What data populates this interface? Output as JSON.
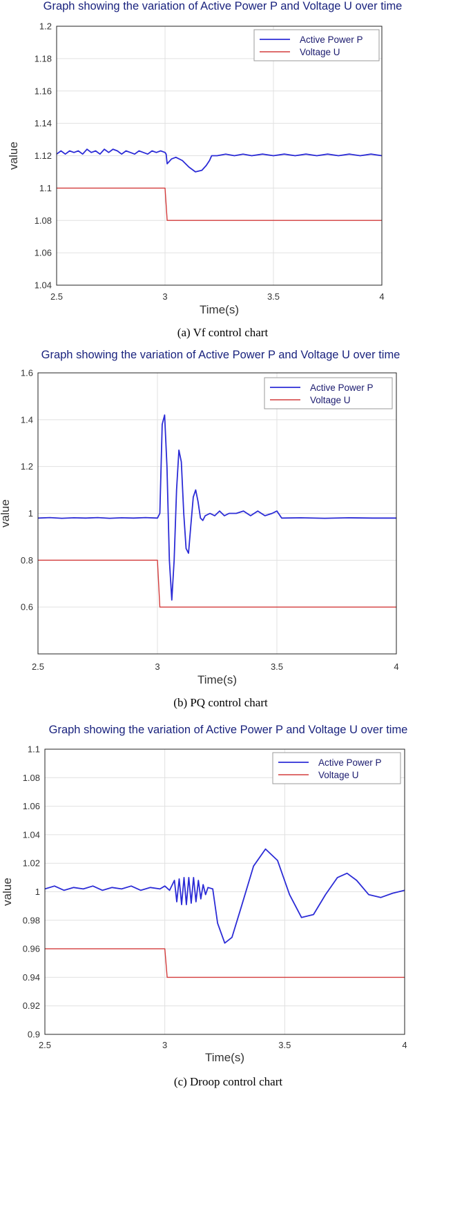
{
  "chart_data": [
    {
      "type": "line",
      "title": "Graph showing the variation of Active Power P and Voltage U over time",
      "caption": "(a) Vf control chart",
      "xlabel": "Time(s)",
      "ylabel": "value",
      "xlim": [
        2.5,
        4
      ],
      "ylim": [
        1.04,
        1.2
      ],
      "xticks": [
        2.5,
        3,
        3.5,
        4
      ],
      "xtick_labels": [
        "2.5",
        "3",
        "3.5",
        "4"
      ],
      "yticks": [
        1.04,
        1.06,
        1.08,
        1.1,
        1.12,
        1.14,
        1.16,
        1.18,
        1.2
      ],
      "ytick_labels": [
        "1.04",
        "1.06",
        "1.08",
        "1.1",
        "1.12",
        "1.14",
        "1.16",
        "1.18",
        "1.2"
      ],
      "grid": true,
      "legend_position": "top-right",
      "series": [
        {
          "name": "Active Power P",
          "color": "#2b2bd6",
          "points": [
            [
              2.5,
              1.121
            ],
            [
              2.52,
              1.123
            ],
            [
              2.54,
              1.121
            ],
            [
              2.56,
              1.123
            ],
            [
              2.58,
              1.122
            ],
            [
              2.6,
              1.123
            ],
            [
              2.62,
              1.121
            ],
            [
              2.64,
              1.124
            ],
            [
              2.66,
              1.122
            ],
            [
              2.68,
              1.123
            ],
            [
              2.7,
              1.121
            ],
            [
              2.72,
              1.124
            ],
            [
              2.74,
              1.122
            ],
            [
              2.76,
              1.124
            ],
            [
              2.78,
              1.123
            ],
            [
              2.8,
              1.121
            ],
            [
              2.82,
              1.123
            ],
            [
              2.84,
              1.122
            ],
            [
              2.86,
              1.121
            ],
            [
              2.88,
              1.123
            ],
            [
              2.9,
              1.122
            ],
            [
              2.92,
              1.121
            ],
            [
              2.94,
              1.123
            ],
            [
              2.96,
              1.122
            ],
            [
              2.98,
              1.123
            ],
            [
              3.0,
              1.122
            ],
            [
              3.005,
              1.121
            ],
            [
              3.01,
              1.115
            ],
            [
              3.03,
              1.118
            ],
            [
              3.05,
              1.119
            ],
            [
              3.08,
              1.117
            ],
            [
              3.11,
              1.113
            ],
            [
              3.14,
              1.11
            ],
            [
              3.17,
              1.111
            ],
            [
              3.19,
              1.114
            ],
            [
              3.205,
              1.117
            ],
            [
              3.215,
              1.12
            ],
            [
              3.24,
              1.12
            ],
            [
              3.28,
              1.121
            ],
            [
              3.32,
              1.12
            ],
            [
              3.36,
              1.121
            ],
            [
              3.4,
              1.12
            ],
            [
              3.45,
              1.121
            ],
            [
              3.5,
              1.12
            ],
            [
              3.55,
              1.121
            ],
            [
              3.6,
              1.12
            ],
            [
              3.65,
              1.121
            ],
            [
              3.7,
              1.12
            ],
            [
              3.75,
              1.121
            ],
            [
              3.8,
              1.12
            ],
            [
              3.85,
              1.121
            ],
            [
              3.9,
              1.12
            ],
            [
              3.95,
              1.121
            ],
            [
              4.0,
              1.12
            ]
          ]
        },
        {
          "name": "Voltage U",
          "color": "#d33b3b",
          "points": [
            [
              2.5,
              1.1
            ],
            [
              3.0,
              1.1
            ],
            [
              3.01,
              1.08
            ],
            [
              4.0,
              1.08
            ]
          ]
        }
      ]
    },
    {
      "type": "line",
      "title": "Graph showing the variation of Active Power P and Voltage U over time",
      "caption": "(b) PQ control chart",
      "xlabel": "Time(s)",
      "ylabel": "value",
      "xlim": [
        2.5,
        4
      ],
      "ylim": [
        0.4,
        1.6
      ],
      "xticks": [
        2.5,
        3,
        3.5,
        4
      ],
      "xtick_labels": [
        "2.5",
        "3",
        "3.5",
        "4"
      ],
      "yticks": [
        0.6,
        0.8,
        1,
        1.2,
        1.4,
        1.6
      ],
      "ytick_labels": [
        "0.6",
        "0.8",
        "1",
        "1.2",
        "1.4",
        "1.6"
      ],
      "grid": true,
      "legend_position": "top-right",
      "series": [
        {
          "name": "Active Power P",
          "color": "#2b2bd6",
          "points": [
            [
              2.5,
              0.98
            ],
            [
              2.55,
              0.982
            ],
            [
              2.6,
              0.979
            ],
            [
              2.65,
              0.981
            ],
            [
              2.7,
              0.98
            ],
            [
              2.75,
              0.982
            ],
            [
              2.8,
              0.979
            ],
            [
              2.85,
              0.981
            ],
            [
              2.9,
              0.98
            ],
            [
              2.95,
              0.982
            ],
            [
              3.0,
              0.98
            ],
            [
              3.01,
              1.0
            ],
            [
              3.02,
              1.38
            ],
            [
              3.03,
              1.42
            ],
            [
              3.04,
              1.2
            ],
            [
              3.05,
              0.8
            ],
            [
              3.06,
              0.63
            ],
            [
              3.07,
              0.8
            ],
            [
              3.08,
              1.1
            ],
            [
              3.09,
              1.27
            ],
            [
              3.1,
              1.22
            ],
            [
              3.11,
              1.0
            ],
            [
              3.12,
              0.85
            ],
            [
              3.13,
              0.83
            ],
            [
              3.14,
              0.95
            ],
            [
              3.15,
              1.07
            ],
            [
              3.16,
              1.1
            ],
            [
              3.17,
              1.05
            ],
            [
              3.18,
              0.98
            ],
            [
              3.19,
              0.97
            ],
            [
              3.2,
              0.99
            ],
            [
              3.22,
              1.0
            ],
            [
              3.24,
              0.99
            ],
            [
              3.26,
              1.01
            ],
            [
              3.28,
              0.99
            ],
            [
              3.3,
              1.0
            ],
            [
              3.33,
              1.0
            ],
            [
              3.36,
              1.01
            ],
            [
              3.39,
              0.99
            ],
            [
              3.42,
              1.01
            ],
            [
              3.45,
              0.99
            ],
            [
              3.48,
              1.0
            ],
            [
              3.5,
              1.01
            ],
            [
              3.52,
              0.98
            ],
            [
              3.6,
              0.981
            ],
            [
              3.7,
              0.979
            ],
            [
              3.8,
              0.981
            ],
            [
              3.9,
              0.98
            ],
            [
              4.0,
              0.98
            ]
          ]
        },
        {
          "name": "Voltage U",
          "color": "#d33b3b",
          "points": [
            [
              2.5,
              0.8
            ],
            [
              3.0,
              0.8
            ],
            [
              3.01,
              0.6
            ],
            [
              4.0,
              0.6
            ]
          ]
        }
      ]
    },
    {
      "type": "line",
      "title": "Graph showing the variation of Active Power P and Voltage U over time",
      "caption": "(c) Droop control chart",
      "xlabel": "Time(s)",
      "ylabel": "value",
      "xlim": [
        2.5,
        4
      ],
      "ylim": [
        0.9,
        1.1
      ],
      "xticks": [
        2.5,
        3,
        3.5,
        4
      ],
      "xtick_labels": [
        "2.5",
        "3",
        "3.5",
        "4"
      ],
      "yticks": [
        0.9,
        0.92,
        0.94,
        0.96,
        0.98,
        1,
        1.02,
        1.04,
        1.06,
        1.08,
        1.1
      ],
      "ytick_labels": [
        "0.9",
        "0.92",
        "0.94",
        "0.96",
        "0.98",
        "1",
        "1.02",
        "1.04",
        "1.06",
        "1.08",
        "1.1"
      ],
      "grid": true,
      "legend_position": "top-right",
      "series": [
        {
          "name": "Active Power P",
          "color": "#2b2bd6",
          "points": [
            [
              2.5,
              1.002
            ],
            [
              2.54,
              1.004
            ],
            [
              2.58,
              1.001
            ],
            [
              2.62,
              1.003
            ],
            [
              2.66,
              1.002
            ],
            [
              2.7,
              1.004
            ],
            [
              2.74,
              1.001
            ],
            [
              2.78,
              1.003
            ],
            [
              2.82,
              1.002
            ],
            [
              2.86,
              1.004
            ],
            [
              2.9,
              1.001
            ],
            [
              2.94,
              1.003
            ],
            [
              2.98,
              1.002
            ],
            [
              3.0,
              1.004
            ],
            [
              3.02,
              1.001
            ],
            [
              3.04,
              1.008
            ],
            [
              3.05,
              0.993
            ],
            [
              3.06,
              1.009
            ],
            [
              3.07,
              0.991
            ],
            [
              3.08,
              1.01
            ],
            [
              3.09,
              0.991
            ],
            [
              3.1,
              1.01
            ],
            [
              3.11,
              0.992
            ],
            [
              3.12,
              1.01
            ],
            [
              3.13,
              0.993
            ],
            [
              3.14,
              1.008
            ],
            [
              3.15,
              0.995
            ],
            [
              3.16,
              1.005
            ],
            [
              3.17,
              0.998
            ],
            [
              3.18,
              1.003
            ],
            [
              3.2,
              1.002
            ],
            [
              3.22,
              0.978
            ],
            [
              3.25,
              0.964
            ],
            [
              3.28,
              0.968
            ],
            [
              3.32,
              0.99
            ],
            [
              3.37,
              1.018
            ],
            [
              3.42,
              1.03
            ],
            [
              3.47,
              1.022
            ],
            [
              3.52,
              0.998
            ],
            [
              3.57,
              0.982
            ],
            [
              3.62,
              0.984
            ],
            [
              3.67,
              0.998
            ],
            [
              3.72,
              1.01
            ],
            [
              3.76,
              1.013
            ],
            [
              3.8,
              1.008
            ],
            [
              3.85,
              0.998
            ],
            [
              3.9,
              0.996
            ],
            [
              3.95,
              0.999
            ],
            [
              4.0,
              1.001
            ]
          ]
        },
        {
          "name": "Voltage U",
          "color": "#d33b3b",
          "points": [
            [
              2.5,
              0.96
            ],
            [
              3.0,
              0.96
            ],
            [
              3.01,
              0.94
            ],
            [
              4.0,
              0.94
            ]
          ]
        }
      ]
    }
  ]
}
